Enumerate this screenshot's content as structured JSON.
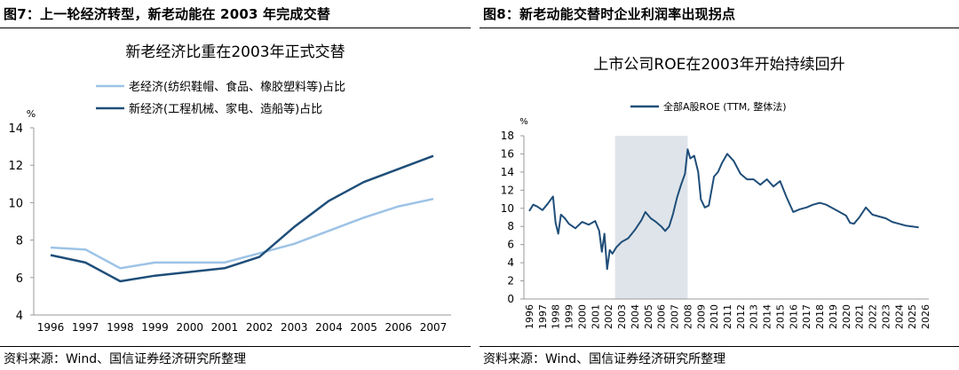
{
  "left": {
    "figure_title": "图7：上一轮经济转型，新老动能在 2003 年完成交替",
    "source": "资料来源：Wind、国信证券经济研究所整理",
    "chart_data": {
      "type": "line",
      "title": "新老经济比重在2003年正式交替",
      "ylabel": "%",
      "xlabel": "",
      "ylim": [
        4,
        14
      ],
      "yticks": [
        4,
        6,
        8,
        10,
        12,
        14
      ],
      "categories": [
        "1996",
        "1997",
        "1998",
        "1999",
        "2000",
        "2001",
        "2002",
        "2003",
        "2004",
        "2005",
        "2006",
        "2007"
      ],
      "series": [
        {
          "name": "老经济(纺织鞋帽、食品、橡胶塑料等)占比",
          "color": "#9dc3e6",
          "values": [
            7.6,
            7.5,
            6.5,
            6.8,
            6.8,
            6.8,
            7.3,
            7.8,
            8.5,
            9.2,
            9.8,
            10.2
          ]
        },
        {
          "name": "新经济(工程机械、家电、造船等)占比",
          "color": "#1f4e79",
          "values": [
            7.2,
            6.8,
            5.8,
            6.1,
            6.3,
            6.5,
            7.1,
            8.7,
            10.1,
            11.1,
            11.8,
            12.5
          ]
        }
      ]
    }
  },
  "right": {
    "figure_title": "图8：新老动能交替时企业利润率出现拐点",
    "source": "资料来源：Wind、国信证券经济研究所整理",
    "chart_data": {
      "type": "line",
      "title": "上市公司ROE在2003年开始持续回升",
      "ylabel": "%",
      "ylim": [
        0,
        18
      ],
      "yticks": [
        0,
        2,
        4,
        6,
        8,
        10,
        12,
        14,
        16,
        18
      ],
      "categories": [
        "1996",
        "1997",
        "1998",
        "1999",
        "2000",
        "2001",
        "2002",
        "2003",
        "2004",
        "2005",
        "2006",
        "2007",
        "2008",
        "2009",
        "2010",
        "2011",
        "2012",
        "2013",
        "2014",
        "2015",
        "2016",
        "2017",
        "2018",
        "2019",
        "2020",
        "2021",
        "2022",
        "2023",
        "2024",
        "2025",
        "2026"
      ],
      "shaded_region": {
        "from": 2002.5,
        "to": 2008.0
      },
      "series": [
        {
          "name": "全部A股ROE (TTM, 整体法)",
          "color": "#1f4e79",
          "x": [
            1996.0,
            1996.3,
            1996.6,
            1997.0,
            1997.4,
            1997.8,
            1998.0,
            1998.2,
            1998.4,
            1998.7,
            1999.0,
            1999.5,
            2000.0,
            2000.5,
            2001.0,
            2001.3,
            2001.5,
            2001.7,
            2001.9,
            2002.1,
            2002.3,
            2002.6,
            2003.0,
            2003.5,
            2004.0,
            2004.5,
            2004.8,
            2005.2,
            2005.6,
            2006.0,
            2006.3,
            2006.6,
            2006.9,
            2007.2,
            2007.5,
            2007.8,
            2008.0,
            2008.2,
            2008.5,
            2008.8,
            2009.0,
            2009.3,
            2009.6,
            2010.0,
            2010.3,
            2010.6,
            2011.0,
            2011.5,
            2012.0,
            2012.5,
            2013.0,
            2013.5,
            2014.0,
            2014.5,
            2015.0,
            2015.5,
            2016.0,
            2016.5,
            2017.0,
            2017.5,
            2018.0,
            2018.5,
            2019.0,
            2019.5,
            2020.0,
            2020.3,
            2020.6,
            2021.0,
            2021.5,
            2022.0,
            2022.5,
            2023.0,
            2023.5,
            2024.0,
            2024.5,
            2025.0,
            2025.5
          ],
          "values": [
            9.7,
            10.4,
            10.2,
            9.8,
            10.5,
            11.3,
            8.4,
            7.2,
            9.3,
            8.9,
            8.3,
            7.8,
            8.5,
            8.2,
            8.6,
            7.5,
            5.2,
            7.2,
            3.3,
            5.4,
            5.0,
            5.7,
            6.3,
            6.7,
            7.6,
            8.7,
            9.6,
            8.9,
            8.5,
            8.0,
            7.5,
            8.0,
            9.4,
            11.2,
            12.6,
            13.8,
            16.5,
            15.5,
            15.8,
            14.0,
            11.0,
            10.1,
            10.3,
            13.5,
            14.0,
            15.0,
            16.0,
            15.2,
            13.8,
            13.2,
            13.2,
            12.6,
            13.2,
            12.4,
            13.0,
            11.2,
            9.6,
            9.9,
            10.1,
            10.4,
            10.6,
            10.4,
            10.0,
            9.6,
            9.2,
            8.4,
            8.3,
            9.0,
            10.1,
            9.3,
            9.1,
            8.9,
            8.5,
            8.3,
            8.1,
            8.0,
            7.9
          ]
        }
      ]
    }
  }
}
